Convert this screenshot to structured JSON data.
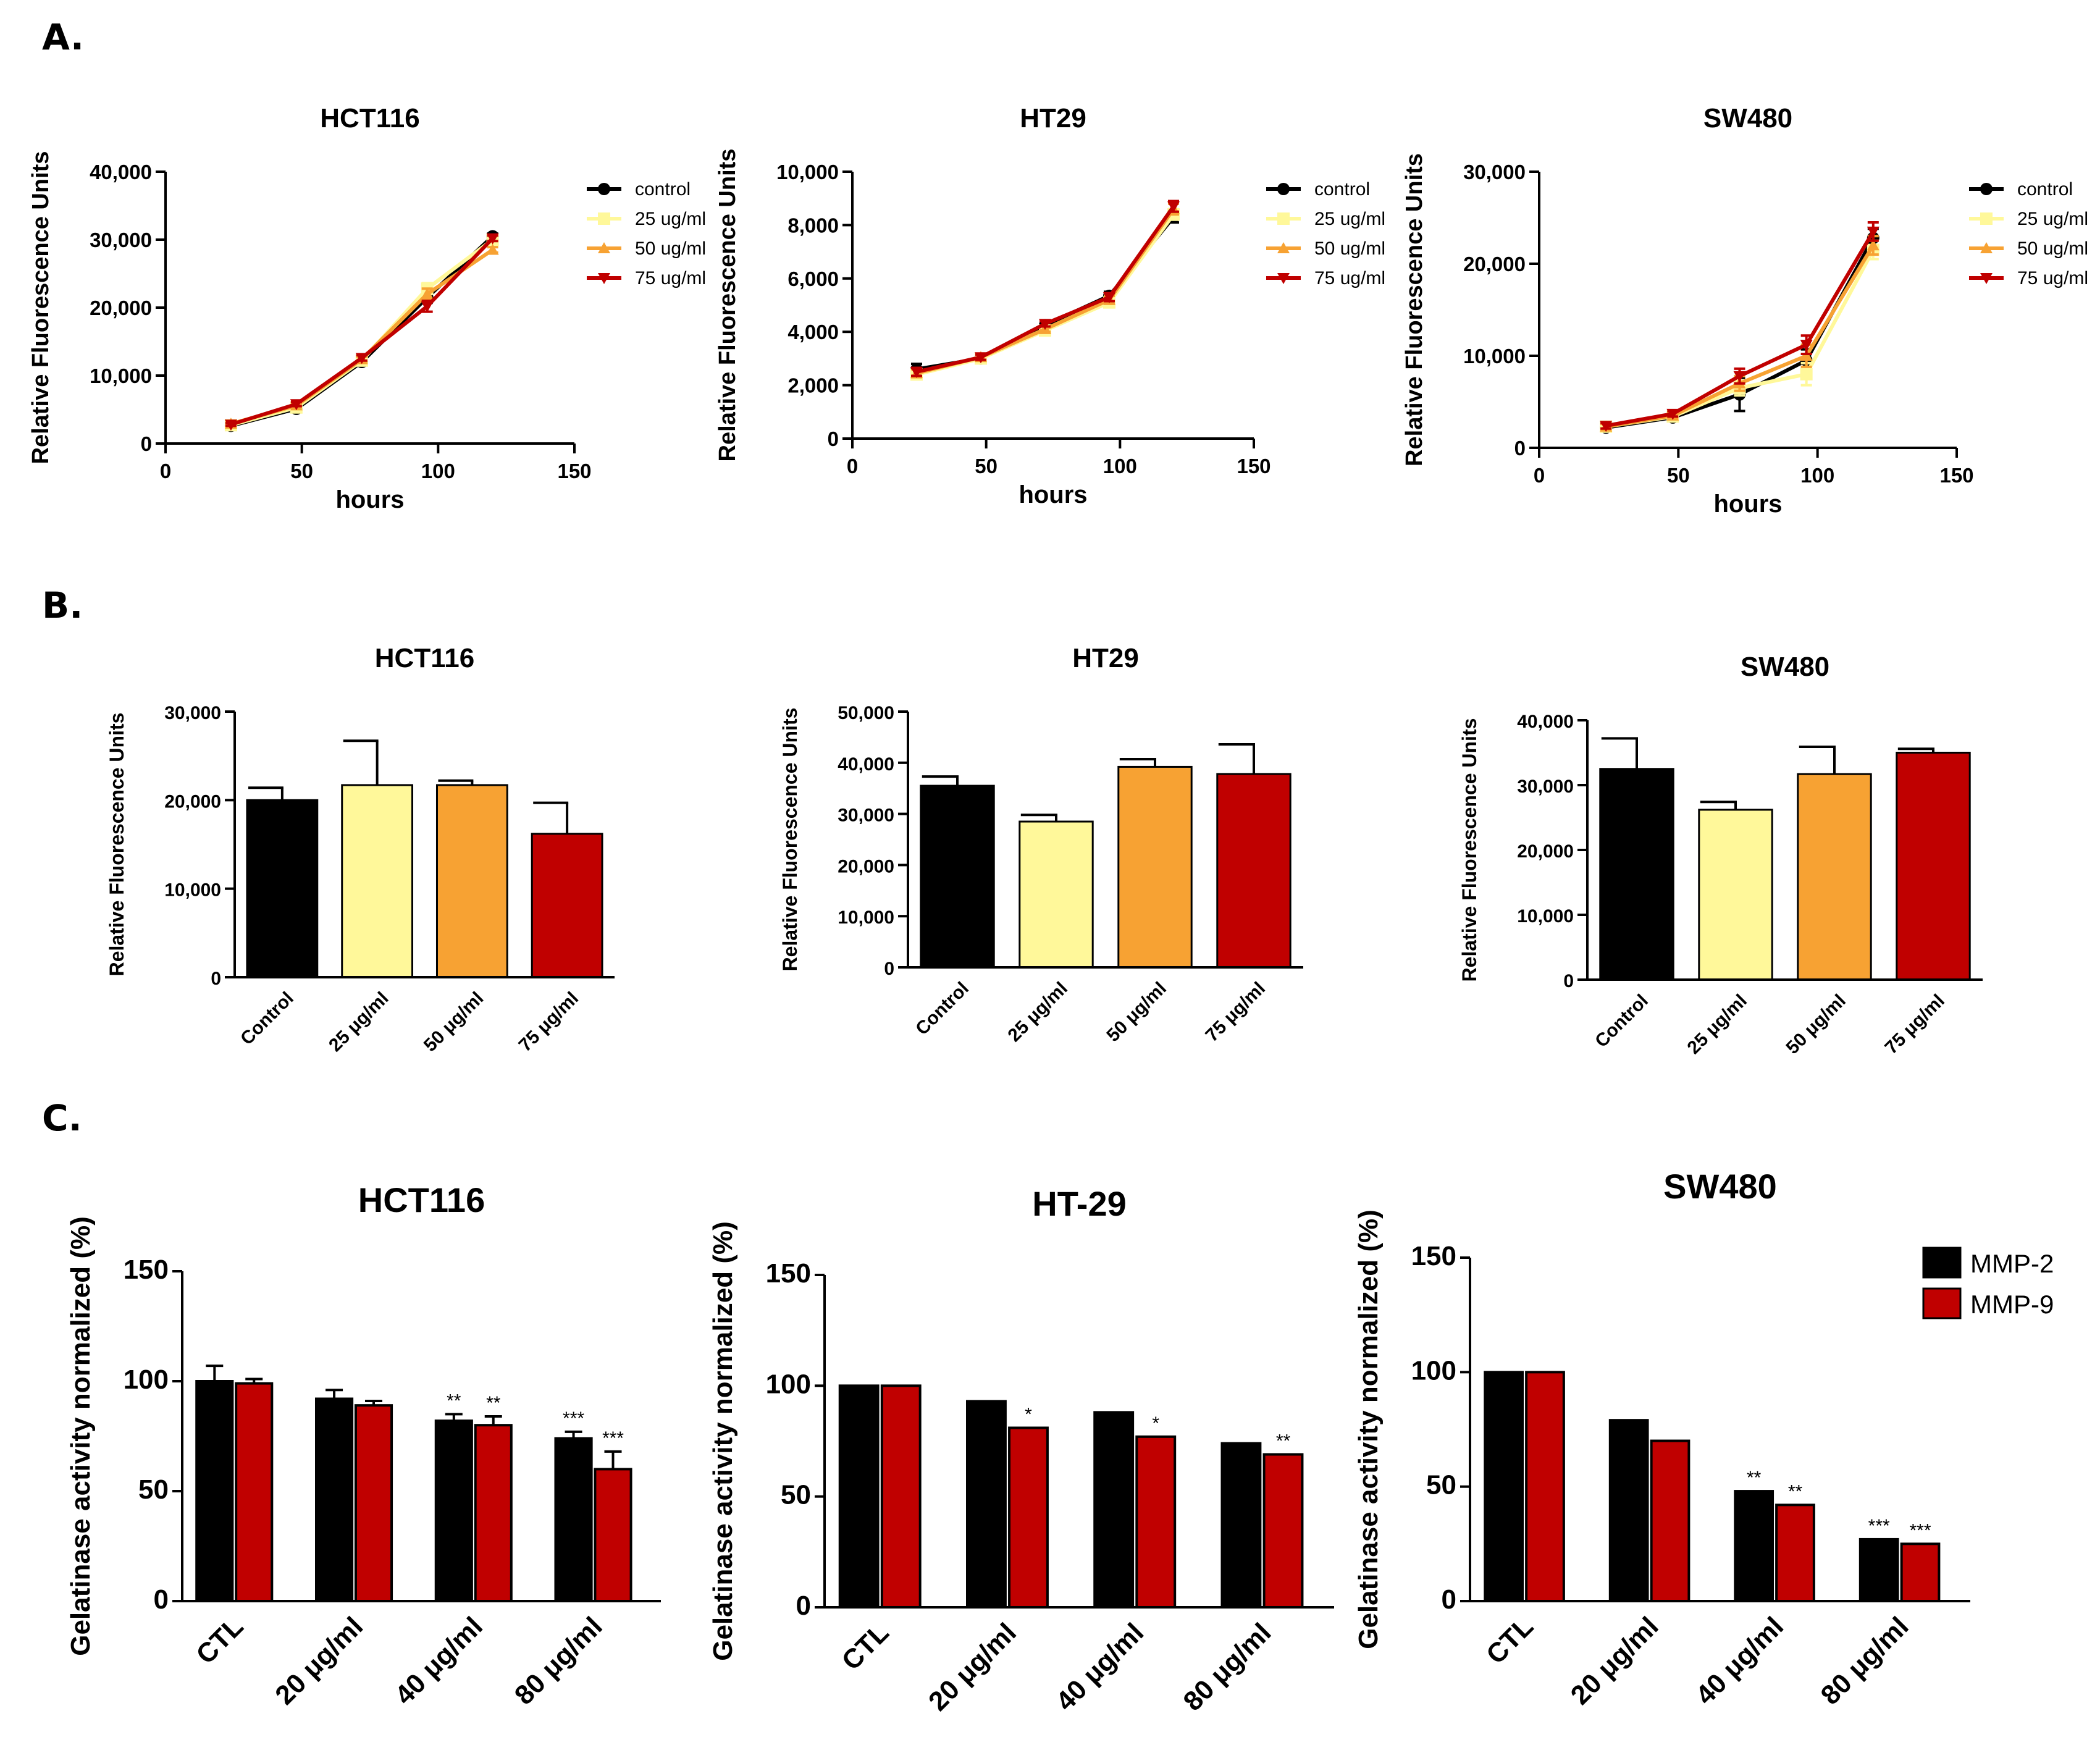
{
  "panels": {
    "A": "A.",
    "B": "B.",
    "C": "C."
  },
  "colors": {
    "control": "#000000",
    "c25": "#fff89a",
    "c50": "#f7a233",
    "c75": "#c00000",
    "mmp2": "#000000",
    "mmp9": "#c00000"
  },
  "chart_data": [
    {
      "type": "line",
      "panel": "A",
      "title": "HCT116",
      "xlabel": "hours",
      "ylabel": "Relative Fluorescence Units",
      "xlim": [
        0,
        150
      ],
      "ylim": [
        0,
        40000
      ],
      "xticks": [
        0,
        50,
        100,
        150
      ],
      "xtick_labels": [
        "0",
        "50",
        "100",
        "150"
      ],
      "yticks": [
        0,
        10000,
        20000,
        30000,
        40000
      ],
      "ytick_labels": [
        "0",
        "10,000",
        "20,000",
        "30,000",
        "40,000"
      ],
      "x": [
        24,
        48,
        72,
        96,
        120
      ],
      "series": [
        {
          "name": "control",
          "color": "#000000",
          "marker": "circle",
          "values": [
            2600,
            5100,
            12000,
            21500,
            30500
          ],
          "errors": [
            200,
            300,
            400,
            800,
            400
          ]
        },
        {
          "name": "25 ug/ml",
          "color": "#fff89a",
          "marker": "square",
          "values": [
            2700,
            5300,
            12200,
            22800,
            30000
          ],
          "errors": [
            200,
            300,
            400,
            800,
            400
          ]
        },
        {
          "name": "50 ug/ml",
          "color": "#f7a233",
          "marker": "triangle",
          "values": [
            2900,
            5600,
            12400,
            22000,
            28500
          ],
          "errors": [
            200,
            300,
            400,
            800,
            400
          ]
        },
        {
          "name": "75 ug/ml",
          "color": "#c00000",
          "marker": "triangle-down",
          "values": [
            2800,
            5800,
            12600,
            20200,
            30200
          ],
          "errors": [
            200,
            300,
            400,
            800,
            400
          ]
        }
      ],
      "legend": "right"
    },
    {
      "type": "line",
      "panel": "A",
      "title": "HT29",
      "xlabel": "hours",
      "ylabel": "Relative Fluorescence Units",
      "xlim": [
        0,
        150
      ],
      "ylim": [
        0,
        10000
      ],
      "xticks": [
        0,
        50,
        100,
        150
      ],
      "xtick_labels": [
        "0",
        "50",
        "100",
        "150"
      ],
      "yticks": [
        0,
        2000,
        4000,
        6000,
        8000,
        10000
      ],
      "ytick_labels": [
        "0",
        "2,000",
        "4,000",
        "6,000",
        "8,000",
        "10,000"
      ],
      "x": [
        24,
        48,
        72,
        96,
        120
      ],
      "series": [
        {
          "name": "control",
          "color": "#000000",
          "marker": "circle",
          "values": [
            2600,
            3000,
            4250,
            5350,
            8300
          ],
          "errors": [
            200,
            100,
            100,
            150,
            200
          ]
        },
        {
          "name": "25 ug/ml",
          "color": "#fff89a",
          "marker": "square",
          "values": [
            2400,
            3000,
            4050,
            5100,
            8400
          ],
          "errors": [
            150,
            100,
            100,
            150,
            200
          ]
        },
        {
          "name": "50 ug/ml",
          "color": "#f7a233",
          "marker": "triangle",
          "values": [
            2450,
            3050,
            4100,
            5200,
            8600
          ],
          "errors": [
            150,
            100,
            100,
            150,
            200
          ]
        },
        {
          "name": "75 ug/ml",
          "color": "#c00000",
          "marker": "triangle-down",
          "values": [
            2500,
            3050,
            4300,
            5300,
            8700
          ],
          "errors": [
            150,
            100,
            100,
            150,
            200
          ]
        }
      ],
      "legend": "right"
    },
    {
      "type": "line",
      "panel": "A",
      "title": "SW480",
      "xlabel": "hours",
      "ylabel": "Relative Fluorescence Units",
      "xlim": [
        0,
        150
      ],
      "ylim": [
        0,
        30000
      ],
      "xticks": [
        0,
        50,
        100,
        150
      ],
      "xtick_labels": [
        "0",
        "50",
        "100",
        "150"
      ],
      "yticks": [
        0,
        10000,
        20000,
        30000
      ],
      "ytick_labels": [
        "0",
        "10,000",
        "20,000",
        "30,000"
      ],
      "x": [
        24,
        48,
        72,
        96,
        120
      ],
      "series": [
        {
          "name": "control",
          "color": "#000000",
          "marker": "circle",
          "values": [
            2200,
            3300,
            5800,
            9500,
            22800
          ],
          "errors": [
            300,
            300,
            1800,
            1200,
            1000
          ]
        },
        {
          "name": "25 ug/ml",
          "color": "#fff89a",
          "marker": "square",
          "values": [
            2300,
            3400,
            6500,
            8000,
            21500
          ],
          "errors": [
            300,
            300,
            800,
            1200,
            1000
          ]
        },
        {
          "name": "50 ug/ml",
          "color": "#f7a233",
          "marker": "triangle",
          "values": [
            2300,
            3500,
            7000,
            10000,
            22000
          ],
          "errors": [
            300,
            300,
            800,
            1200,
            1000
          ]
        },
        {
          "name": "75 ug/ml",
          "color": "#c00000",
          "marker": "triangle-down",
          "values": [
            2400,
            3700,
            7800,
            11200,
            23500
          ],
          "errors": [
            300,
            300,
            800,
            1000,
            1000
          ]
        }
      ],
      "legend": "right"
    },
    {
      "type": "bar",
      "panel": "B",
      "title": "HCT116",
      "ylabel": "Relative Fluorescence Units",
      "ylim": [
        0,
        30000
      ],
      "yticks": [
        0,
        10000,
        20000,
        30000
      ],
      "ytick_labels": [
        "0",
        "10,000",
        "20,000",
        "30,000"
      ],
      "categories": [
        "Control",
        "25 μg/ml",
        "50 μg/ml",
        "75 μg/ml"
      ],
      "values": [
        20000,
        21700,
        21700,
        16200
      ],
      "errors": [
        1400,
        5000,
        500,
        3500
      ],
      "bar_colors": [
        "#000000",
        "#fff89a",
        "#f7a233",
        "#c00000"
      ]
    },
    {
      "type": "bar",
      "panel": "B",
      "title": "HT29",
      "ylabel": "Relative Fluorescence Units",
      "ylim": [
        0,
        50000
      ],
      "yticks": [
        0,
        10000,
        20000,
        30000,
        40000,
        50000
      ],
      "ytick_labels": [
        "0",
        "10,000",
        "20,000",
        "30,000",
        "40,000",
        "50,000"
      ],
      "categories": [
        "Control",
        "25 μg/ml",
        "50 μg/ml",
        "75 μg/ml"
      ],
      "values": [
        35500,
        28500,
        39200,
        37800
      ],
      "errors": [
        1800,
        1300,
        1500,
        5800
      ],
      "bar_colors": [
        "#000000",
        "#fff89a",
        "#f7a233",
        "#c00000"
      ]
    },
    {
      "type": "bar",
      "panel": "B",
      "title": "SW480",
      "ylabel": "Relative Fluorescence Units",
      "ylim": [
        0,
        40000
      ],
      "yticks": [
        0,
        10000,
        20000,
        30000,
        40000
      ],
      "ytick_labels": [
        "0",
        "10,000",
        "20,000",
        "30,000",
        "40,000"
      ],
      "categories": [
        "Control",
        "25 μg/ml",
        "50 μg/ml",
        "75 μg/ml"
      ],
      "values": [
        32500,
        26200,
        31700,
        35000
      ],
      "errors": [
        4700,
        1200,
        4200,
        600
      ],
      "bar_colors": [
        "#000000",
        "#fff89a",
        "#f7a233",
        "#c00000"
      ]
    },
    {
      "type": "bar",
      "panel": "C",
      "title": "HCT116",
      "ylabel": "Gelatinase activity normalized (%)",
      "ylim": [
        0,
        150
      ],
      "yticks": [
        0,
        50,
        100,
        150
      ],
      "ytick_labels": [
        "0",
        "50",
        "100",
        "150"
      ],
      "categories": [
        "CTL",
        "20 μg/ml",
        "40 μg/ml",
        "80 μg/ml"
      ],
      "series": [
        {
          "name": "MMP-2",
          "color": "#000000",
          "values": [
            100,
            92,
            82,
            74
          ],
          "errors": [
            7,
            4,
            3,
            3
          ],
          "stars": [
            "",
            "",
            "**",
            "***"
          ]
        },
        {
          "name": "MMP-9",
          "color": "#c00000",
          "values": [
            99,
            89,
            80,
            60
          ],
          "errors": [
            2,
            2,
            4,
            8
          ],
          "stars": [
            "",
            "",
            "**",
            "***"
          ]
        }
      ]
    },
    {
      "type": "bar",
      "panel": "C",
      "title": "HT-29",
      "ylabel": "Gelatinase activity normalized (%)",
      "ylim": [
        0,
        150
      ],
      "yticks": [
        0,
        50,
        100,
        150
      ],
      "ytick_labels": [
        "0",
        "50",
        "100",
        "150"
      ],
      "categories": [
        "CTL",
        "20 μg/ml",
        "40 μg/ml",
        "80 μg/ml"
      ],
      "series": [
        {
          "name": "MMP-2",
          "color": "#000000",
          "values": [
            100,
            93,
            88,
            74
          ],
          "errors": [
            0,
            0,
            0,
            0
          ],
          "stars": [
            "",
            "",
            "",
            ""
          ]
        },
        {
          "name": "MMP-9",
          "color": "#c00000",
          "values": [
            100,
            81,
            77,
            69
          ],
          "errors": [
            0,
            0,
            0,
            0
          ],
          "stars": [
            "",
            "*",
            "*",
            "**"
          ]
        }
      ]
    },
    {
      "type": "bar",
      "panel": "C",
      "title": "SW480",
      "ylabel": "Gelatinase activity normalized (%)",
      "ylim": [
        0,
        150
      ],
      "yticks": [
        0,
        50,
        100,
        150
      ],
      "ytick_labels": [
        "0",
        "50",
        "100",
        "150"
      ],
      "categories": [
        "CTL",
        "20 μg/ml",
        "40 μg/ml",
        "80 μg/ml"
      ],
      "series": [
        {
          "name": "MMP-2",
          "color": "#000000",
          "values": [
            100,
            79,
            48,
            27
          ],
          "errors": [
            0,
            0,
            0,
            0
          ],
          "stars": [
            "",
            "",
            "**",
            "***"
          ]
        },
        {
          "name": "MMP-9",
          "color": "#c00000",
          "values": [
            100,
            70,
            42,
            25
          ],
          "errors": [
            0,
            0,
            0,
            0
          ],
          "stars": [
            "",
            "",
            "**",
            "***"
          ]
        }
      ],
      "legend": "top-right"
    }
  ]
}
